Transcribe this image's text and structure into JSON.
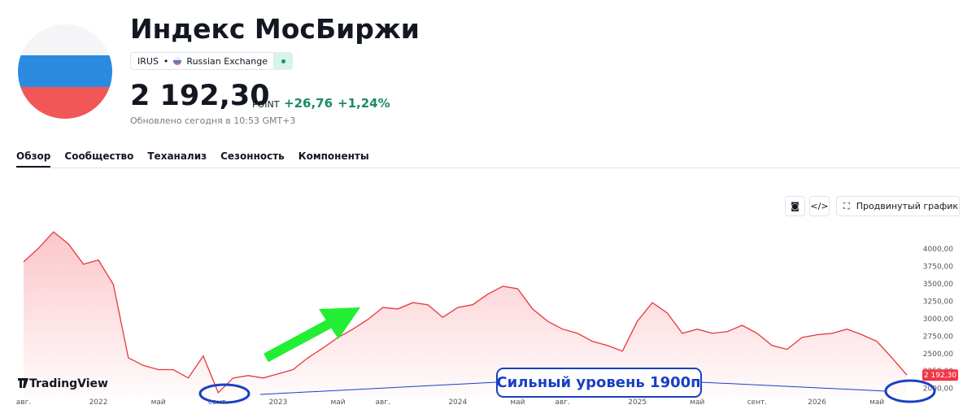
{
  "header": {
    "title": "Индекс МосБиржи",
    "ticker": "IRUS",
    "exchange": "Russian Exchange",
    "price": "2 192,30",
    "unit": "POINT",
    "change": "+26,76",
    "change_percent": "+1,24%",
    "updated": "Обновлено сегодня в 10:53 GMT+3"
  },
  "tabs": [
    "Обзор",
    "Сообщество",
    "Теханализ",
    "Сезонность",
    "Компоненты"
  ],
  "toolbar": {
    "advanced_chart": "Продвинутый график"
  },
  "branding": "TradingView",
  "chart_data": {
    "type": "area",
    "color": "#e5383b",
    "grid": false,
    "x": [
      "2021-08",
      "2021-09",
      "2021-10",
      "2021-11",
      "2021-12",
      "2022-01",
      "2022-02",
      "2022-03",
      "2022-04",
      "2022-05",
      "2022-06",
      "2022-07",
      "2022-08",
      "2022-09",
      "2022-10",
      "2022-11",
      "2022-12",
      "2023-01",
      "2023-02",
      "2023-03",
      "2023-04",
      "2023-05",
      "2023-06",
      "2023-07",
      "2023-08",
      "2023-09",
      "2023-10",
      "2023-11",
      "2023-12",
      "2024-01",
      "2024-02",
      "2024-03",
      "2024-04",
      "2024-05",
      "2024-06",
      "2024-07",
      "2024-08",
      "2024-09",
      "2024-10",
      "2024-11",
      "2024-12",
      "2025-01",
      "2025-02",
      "2025-03",
      "2025-04",
      "2025-05",
      "2025-06",
      "2025-07",
      "2025-08",
      "2025-09",
      "2025-10",
      "2025-11",
      "2025-12",
      "2026-01",
      "2026-02",
      "2026-03",
      "2026-04",
      "2026-05",
      "2026-06",
      "2026-07"
    ],
    "values": [
      3814,
      4010,
      4244,
      4070,
      3780,
      3840,
      3490,
      2440,
      2330,
      2270,
      2270,
      2150,
      2465,
      1940,
      2150,
      2185,
      2150,
      2210,
      2270,
      2440,
      2580,
      2730,
      2850,
      2990,
      3160,
      3140,
      3230,
      3200,
      3020,
      3160,
      3200,
      3350,
      3465,
      3430,
      3140,
      2965,
      2850,
      2790,
      2675,
      2615,
      2535,
      2965,
      3230,
      3080,
      2790,
      2850,
      2790,
      2815,
      2905,
      2790,
      2615,
      2560,
      2730,
      2770,
      2790,
      2850,
      2770,
      2675,
      2440,
      2192.3
    ],
    "xlim": [
      "2021-08",
      "2026-07"
    ],
    "xticks": [
      {
        "value": "2021-08",
        "label": "авг."
      },
      {
        "value": "2022-01",
        "label": "2022"
      },
      {
        "value": "2022-05",
        "label": "май"
      },
      {
        "value": "2022-09",
        "label": "сент."
      },
      {
        "value": "2023-01",
        "label": "2023"
      },
      {
        "value": "2023-05",
        "label": "май"
      },
      {
        "value": "2023-08",
        "label": "авг."
      },
      {
        "value": "2024-01",
        "label": "2024"
      },
      {
        "value": "2024-05",
        "label": "май"
      },
      {
        "value": "2024-08",
        "label": "авг."
      },
      {
        "value": "2025-01",
        "label": "2025"
      },
      {
        "value": "2025-05",
        "label": "май"
      },
      {
        "value": "2025-09",
        "label": "сент."
      },
      {
        "value": "2026-01",
        "label": "2026"
      },
      {
        "value": "2026-05",
        "label": "май"
      }
    ],
    "ylim": [
      1880,
      4420
    ],
    "yticks": [
      {
        "value": 2000,
        "label": "2000,00"
      },
      {
        "value": 2250,
        "label": "2250,00"
      },
      {
        "value": 2500,
        "label": "2500,00"
      },
      {
        "value": 2750,
        "label": "2750,00"
      },
      {
        "value": 3000,
        "label": "3000,00"
      },
      {
        "value": 3250,
        "label": "3250,00"
      },
      {
        "value": 3500,
        "label": "3500,00"
      },
      {
        "value": 3750,
        "label": "3750,00"
      },
      {
        "value": 4000,
        "label": "4000,00"
      }
    ],
    "price_marker": {
      "value": 2192.3,
      "label": "2 192,30"
    },
    "annotation": "Сильный уровень 1900п"
  }
}
